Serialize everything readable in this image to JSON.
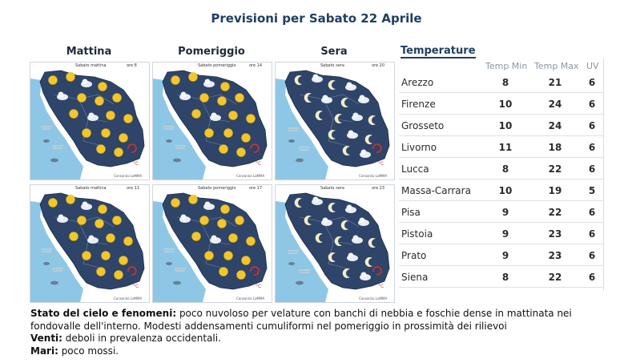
{
  "title": "Previsioni per Sabato 22 Aprile",
  "columns": [
    "Mattina",
    "Pomeriggio",
    "Sera"
  ],
  "maps": [
    {
      "caption": "Sabato mattina",
      "hour": "ore 8",
      "credit": "Consorzio LaMMA",
      "kind": "day"
    },
    {
      "caption": "Sabato pomeriggio",
      "hour": "ore 14",
      "credit": "Consorzio LaMMA",
      "kind": "day"
    },
    {
      "caption": "Sabato sera",
      "hour": "ore 20",
      "credit": "Consorzio LaMMA",
      "kind": "night"
    },
    {
      "caption": "Sabato mattina",
      "hour": "ore 11",
      "credit": "Consorzio LaMMA",
      "kind": "day"
    },
    {
      "caption": "Sabato pomeriggio",
      "hour": "ore 17",
      "credit": "Consorzio LaMMA",
      "kind": "day"
    },
    {
      "caption": "Sabato sera",
      "hour": "ore 23",
      "credit": "Consorzio LaMMA",
      "kind": "night"
    }
  ],
  "temperature": {
    "heading": "Temperature",
    "headers": {
      "min": "Temp Min",
      "max": "Temp Max",
      "uv": "UV"
    },
    "rows": [
      {
        "city": "Arezzo",
        "min": "8",
        "max": "21",
        "uv": "6"
      },
      {
        "city": "Firenze",
        "min": "10",
        "max": "24",
        "uv": "6"
      },
      {
        "city": "Grosseto",
        "min": "10",
        "max": "24",
        "uv": "6"
      },
      {
        "city": "Livorno",
        "min": "11",
        "max": "18",
        "uv": "6"
      },
      {
        "city": "Lucca",
        "min": "8",
        "max": "22",
        "uv": "6"
      },
      {
        "city": "Massa-Carrara",
        "min": "10",
        "max": "19",
        "uv": "5"
      },
      {
        "city": "Pisa",
        "min": "9",
        "max": "22",
        "uv": "6"
      },
      {
        "city": "Pistoia",
        "min": "9",
        "max": "23",
        "uv": "6"
      },
      {
        "city": "Prato",
        "min": "9",
        "max": "23",
        "uv": "6"
      },
      {
        "city": "Siena",
        "min": "8",
        "max": "22",
        "uv": "6"
      }
    ]
  },
  "forecast": {
    "sky_label": "Stato del cielo e fenomeni:",
    "sky_text": " poco nuvoloso per velature con banchi di nebbia e foschie dense in mattinata nei fondovalle dell'interno. Modesti addensamenti cumuliformi nel pomeriggio in prossimità dei rilievoi",
    "wind_label": "Venti:",
    "wind_text": " deboli in prevalenza occidentali.",
    "sea_label": "Mari:",
    "sea_text": " poco mossi."
  },
  "colors": {
    "title": "#1f3e63",
    "land": "#2e4469",
    "sea": "#8ec7e6",
    "sun": "#f2c62f",
    "moon": "#f3ecc6"
  }
}
